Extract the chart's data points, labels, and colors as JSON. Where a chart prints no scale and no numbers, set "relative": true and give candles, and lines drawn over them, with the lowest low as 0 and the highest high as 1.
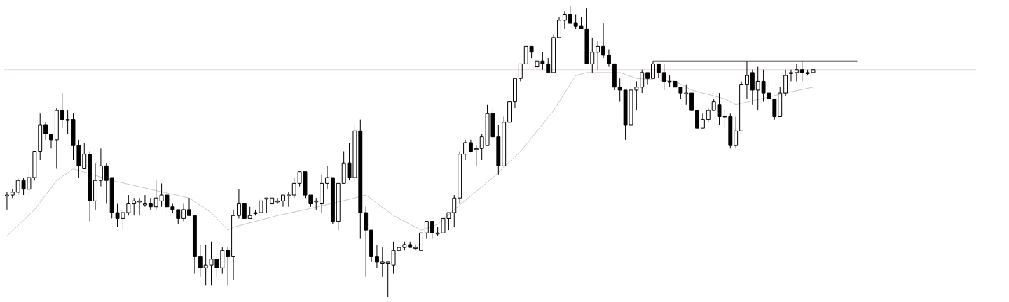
{
  "chart_data": {
    "type": "candlestick",
    "relative": true,
    "marker": "none",
    "categories": [
      null,
      null,
      null,
      null,
      null,
      null,
      null,
      null,
      null,
      null,
      null,
      null,
      null,
      null,
      null,
      null,
      null,
      null,
      null,
      null,
      null,
      null,
      null,
      null,
      null,
      null,
      null,
      null,
      null,
      null,
      null,
      null,
      null,
      null,
      null,
      null,
      null,
      null,
      null,
      null,
      null,
      null,
      null,
      null,
      null,
      null,
      null,
      null,
      null,
      null,
      null,
      null,
      null,
      null,
      null,
      null,
      null,
      null,
      null,
      null,
      null,
      null,
      null,
      null,
      null,
      null,
      null,
      null,
      null,
      null,
      null,
      null,
      null,
      null,
      null,
      null,
      null,
      null,
      null,
      null,
      null,
      null,
      null,
      null,
      null,
      null,
      null,
      null,
      null,
      null,
      null,
      null,
      null,
      null,
      null,
      null,
      null,
      null,
      null,
      null,
      null,
      null,
      null,
      null,
      null,
      null,
      null,
      null,
      null,
      null,
      null,
      null,
      null,
      null,
      null,
      null,
      null,
      null,
      null,
      null,
      null,
      null,
      null,
      null,
      null,
      null,
      null,
      null,
      null,
      null,
      null,
      null,
      null,
      null,
      null,
      null,
      null,
      null,
      null,
      null,
      null,
      null,
      null,
      null,
      null,
      null,
      null,
      null,
      null,
      null,
      null,
      null,
      null,
      null,
      null,
      null,
      null,
      null,
      null,
      null,
      null,
      null,
      null,
      null,
      null,
      null,
      null,
      null,
      null,
      null,
      null,
      null,
      null,
      null,
      null,
      null
    ],
    "series": [
      {
        "color": "#000000",
        "ohlc": [
          [
            0.35,
            0.36,
            0.3,
            0.35
          ],
          [
            0.35,
            0.37,
            0.34,
            0.36
          ],
          [
            0.36,
            0.41,
            0.35,
            0.4
          ],
          [
            0.4,
            0.41,
            0.35,
            0.37
          ],
          [
            0.37,
            0.44,
            0.35,
            0.41
          ],
          [
            0.41,
            0.5,
            0.4,
            0.5
          ],
          [
            0.5,
            0.63,
            0.47,
            0.59
          ],
          [
            0.59,
            0.6,
            0.54,
            0.56
          ],
          [
            0.56,
            0.56,
            0.51,
            0.54
          ],
          [
            0.54,
            0.65,
            0.44,
            0.64
          ],
          [
            0.64,
            0.7,
            0.58,
            0.61
          ],
          [
            0.61,
            0.64,
            0.56,
            0.61
          ],
          [
            0.61,
            0.63,
            0.47,
            0.52
          ],
          [
            0.52,
            0.54,
            0.41,
            0.45
          ],
          [
            0.44,
            0.53,
            0.44,
            0.49
          ],
          [
            0.49,
            0.5,
            0.26,
            0.33
          ],
          [
            0.33,
            0.46,
            0.3,
            0.4
          ],
          [
            0.4,
            0.51,
            0.38,
            0.45
          ],
          [
            0.45,
            0.46,
            0.32,
            0.4
          ],
          [
            0.41,
            0.41,
            0.27,
            0.29
          ],
          [
            0.29,
            0.32,
            0.24,
            0.27
          ],
          [
            0.27,
            0.3,
            0.23,
            0.29
          ],
          [
            0.29,
            0.35,
            0.28,
            0.32
          ],
          [
            0.32,
            0.34,
            0.28,
            0.33
          ],
          [
            0.33,
            0.34,
            0.28,
            0.33
          ],
          [
            0.32,
            0.35,
            0.31,
            0.32
          ],
          [
            0.32,
            0.34,
            0.3,
            0.31
          ],
          [
            0.31,
            0.4,
            0.3,
            0.34
          ],
          [
            0.33,
            0.39,
            0.31,
            0.35
          ],
          [
            0.35,
            0.36,
            0.28,
            0.31
          ],
          [
            0.31,
            0.32,
            0.29,
            0.3
          ],
          [
            0.3,
            0.3,
            0.25,
            0.27
          ],
          [
            0.27,
            0.32,
            0.26,
            0.3
          ],
          [
            0.3,
            0.34,
            0.28,
            0.28
          ],
          [
            0.28,
            0.28,
            0.08,
            0.14
          ],
          [
            0.14,
            0.18,
            0.07,
            0.1
          ],
          [
            0.1,
            0.18,
            0.04,
            0.11
          ],
          [
            0.11,
            0.19,
            0.04,
            0.13
          ],
          [
            0.13,
            0.14,
            0.07,
            0.1
          ],
          [
            0.1,
            0.17,
            0.08,
            0.16
          ],
          [
            0.16,
            0.17,
            0.04,
            0.14
          ],
          [
            0.14,
            0.3,
            0.06,
            0.28
          ],
          [
            0.28,
            0.37,
            0.27,
            0.32
          ],
          [
            0.32,
            0.32,
            0.27,
            0.27
          ],
          [
            0.27,
            0.31,
            0.27,
            0.28
          ],
          [
            0.29,
            0.3,
            0.28,
            0.29
          ],
          [
            0.29,
            0.34,
            0.27,
            0.33
          ],
          [
            0.34,
            0.34,
            0.29,
            0.34
          ],
          [
            0.32,
            0.34,
            0.32,
            0.34
          ],
          [
            0.33,
            0.34,
            0.32,
            0.33
          ],
          [
            0.33,
            0.35,
            0.31,
            0.35
          ],
          [
            0.35,
            0.36,
            0.31,
            0.35
          ],
          [
            0.35,
            0.41,
            0.34,
            0.39
          ],
          [
            0.39,
            0.43,
            0.38,
            0.43
          ],
          [
            0.43,
            0.43,
            0.34,
            0.35
          ],
          [
            0.35,
            0.35,
            0.31,
            0.32
          ],
          [
            0.33,
            0.34,
            0.3,
            0.33
          ],
          [
            0.32,
            0.42,
            0.29,
            0.39
          ],
          [
            0.39,
            0.45,
            0.37,
            0.41
          ],
          [
            0.41,
            0.41,
            0.25,
            0.26
          ],
          [
            0.26,
            0.39,
            0.23,
            0.39
          ],
          [
            0.39,
            0.5,
            0.39,
            0.46
          ],
          [
            0.46,
            0.53,
            0.4,
            0.41
          ],
          [
            0.41,
            0.59,
            0.39,
            0.57
          ],
          [
            0.57,
            0.61,
            0.2,
            0.29
          ],
          [
            0.29,
            0.31,
            0.07,
            0.23
          ],
          [
            0.23,
            0.23,
            0.12,
            0.14
          ],
          [
            0.14,
            0.18,
            0.1,
            0.12
          ],
          [
            0.12,
            0.17,
            0.07,
            0.12
          ],
          [
            0.12,
            0.12,
            0,
            0.12
          ],
          [
            0.11,
            0.19,
            0.08,
            0.16
          ],
          [
            0.16,
            0.18,
            0.15,
            0.17
          ],
          [
            0.17,
            0.19,
            0.16,
            0.18
          ],
          [
            0.18,
            0.19,
            0.17,
            0.17
          ],
          [
            0.17,
            0.18,
            0.16,
            0.17
          ],
          [
            0.16,
            0.22,
            0.16,
            0.22
          ],
          [
            0.22,
            0.26,
            0.2,
            0.26
          ],
          [
            0.26,
            0.26,
            0.2,
            0.22
          ],
          [
            0.22,
            0.24,
            0.21,
            0.22
          ],
          [
            0.22,
            0.27,
            0.22,
            0.27
          ],
          [
            0.27,
            0.29,
            0.23,
            0.29
          ],
          [
            0.29,
            0.35,
            0.24,
            0.34
          ],
          [
            0.34,
            0.5,
            0.32,
            0.49
          ],
          [
            0.49,
            0.54,
            0.47,
            0.53
          ],
          [
            0.53,
            0.54,
            0.5,
            0.5
          ],
          [
            0.51,
            0.52,
            0.45,
            0.51
          ],
          [
            0.51,
            0.56,
            0.47,
            0.55
          ],
          [
            0.52,
            0.66,
            0.52,
            0.63
          ],
          [
            0.63,
            0.65,
            0.54,
            0.55
          ],
          [
            0.55,
            0.59,
            0.42,
            0.45
          ],
          [
            0.45,
            0.62,
            0.45,
            0.6
          ],
          [
            0.6,
            0.67,
            0.6,
            0.67
          ],
          [
            0.67,
            0.75,
            0.65,
            0.75
          ],
          [
            0.75,
            0.8,
            0.74,
            0.8
          ],
          [
            0.8,
            0.86,
            0.8,
            0.86
          ],
          [
            0.86,
            0.86,
            0.82,
            0.84
          ],
          [
            0.79,
            0.84,
            0.79,
            0.81
          ],
          [
            0.81,
            0.84,
            0.78,
            0.8
          ],
          [
            0.8,
            0.82,
            0.77,
            0.77
          ],
          [
            0.77,
            0.9,
            0.77,
            0.89
          ],
          [
            0.89,
            0.96,
            0.89,
            0.95
          ],
          [
            0.95,
            0.98,
            0.92,
            0.97
          ],
          [
            0.97,
            1,
            0.94,
            0.94
          ],
          [
            0.94,
            0.97,
            0.92,
            0.93
          ],
          [
            0.93,
            0.96,
            0.92,
            0.92
          ],
          [
            0.92,
            0.99,
            0.8,
            0.8
          ],
          [
            0.8,
            0.89,
            0.77,
            0.84
          ],
          [
            0.84,
            0.88,
            0.78,
            0.86
          ],
          [
            0.86,
            0.94,
            0.82,
            0.83
          ],
          [
            0.83,
            0.85,
            0.79,
            0.8
          ],
          [
            0.8,
            0.8,
            0.71,
            0.72
          ],
          [
            0.72,
            0.75,
            0.67,
            0.71
          ],
          [
            0.71,
            0.71,
            0.54,
            0.59
          ],
          [
            0.59,
            0.76,
            0.58,
            0.71
          ],
          [
            0.71,
            0.74,
            0.64,
            0.72
          ],
          [
            0.72,
            0.78,
            0.7,
            0.77
          ],
          [
            0.77,
            0.77,
            0.73,
            0.75
          ],
          [
            0.75,
            0.81,
            0.75,
            0.8
          ],
          [
            0.8,
            0.8,
            0.75,
            0.77
          ],
          [
            0.77,
            0.8,
            0.71,
            0.74
          ],
          [
            0.74,
            0.76,
            0.72,
            0.74
          ],
          [
            0.74,
            0.76,
            0.71,
            0.72
          ],
          [
            0.72,
            0.72,
            0.68,
            0.7
          ],
          [
            0.7,
            0.73,
            0.66,
            0.7
          ],
          [
            0.7,
            0.7,
            0.64,
            0.64
          ],
          [
            0.64,
            0.64,
            0.58,
            0.58
          ],
          [
            0.58,
            0.63,
            0.58,
            0.61
          ],
          [
            0.61,
            0.65,
            0.6,
            0.64
          ],
          [
            0.64,
            0.68,
            0.64,
            0.67
          ],
          [
            0.66,
            0.7,
            0.59,
            0.62
          ],
          [
            0.62,
            0.64,
            0.58,
            0.62
          ],
          [
            0.62,
            0.63,
            0.51,
            0.52
          ],
          [
            0.52,
            0.62,
            0.51,
            0.57
          ],
          [
            0.57,
            0.74,
            0.57,
            0.73
          ],
          [
            0.73,
            0.81,
            0.68,
            0.76
          ],
          [
            0.77,
            0.78,
            0.66,
            0.71
          ],
          [
            0.71,
            0.79,
            0.64,
            0.74
          ],
          [
            0.74,
            0.78,
            0.67,
            0.7
          ],
          [
            0.7,
            0.74,
            0.66,
            0.68
          ],
          [
            0.68,
            0.68,
            0.61,
            0.62
          ],
          [
            0.62,
            0.72,
            0.62,
            0.7
          ],
          [
            0.7,
            0.78,
            0.69,
            0.76
          ],
          [
            0.77,
            0.78,
            0.74,
            0.77
          ],
          [
            0.77,
            0.8,
            0.74,
            0.78
          ],
          [
            0.78,
            0.81,
            0.74,
            0.77
          ],
          [
            0.77,
            0.78,
            0.76,
            0.77
          ],
          [
            0.77,
            0.78,
            0.77,
            0.78
          ],
          null,
          null,
          null,
          null,
          null,
          null,
          null,
          null,
          null,
          null,
          null,
          null,
          null,
          null,
          null,
          null,
          null,
          null,
          null,
          null,
          null,
          null,
          null,
          null,
          null,
          null,
          null,
          null,
          null
        ]
      },
      {
        "type": "line",
        "color": "#c8c8c8",
        "values": [
          0.21,
          null,
          null,
          null,
          null,
          0.3,
          null,
          null,
          null,
          0.4,
          null,
          null,
          0.44,
          null,
          null,
          null,
          null,
          null,
          null,
          0.4,
          null,
          null,
          null,
          null,
          null,
          null,
          0.37,
          null,
          null,
          null,
          null,
          null,
          null,
          0.34,
          null,
          null,
          null,
          0.29,
          null,
          null,
          0.23,
          0.24,
          null,
          null,
          null,
          null,
          null,
          null,
          null,
          0.28,
          null,
          null,
          null,
          null,
          0.3,
          null,
          null,
          null,
          null,
          null,
          null,
          null,
          null,
          0.34,
          null,
          0.35,
          null,
          null,
          null,
          null,
          0.28,
          null,
          null,
          null,
          null,
          0.23,
          null,
          null,
          0.25,
          null,
          null,
          0.3,
          null,
          null,
          null,
          null,
          null,
          null,
          0.41,
          null,
          null,
          null,
          null,
          0.5,
          null,
          null,
          null,
          null,
          null,
          0.64,
          null,
          null,
          0.73,
          0.76,
          null,
          0.77,
          null,
          null,
          null,
          null,
          null,
          0.77,
          null,
          null,
          0.75,
          null,
          null,
          null,
          null,
          null,
          null,
          0.74,
          null,
          null,
          0.71,
          null,
          null,
          null,
          null,
          null,
          0.68,
          null,
          0.66,
          null,
          null,
          null,
          null,
          null,
          null,
          null,
          null,
          0.7,
          null,
          null,
          null,
          null,
          0.72,
          null,
          null,
          null,
          null,
          null,
          null,
          null,
          null,
          null,
          null,
          null,
          null,
          null,
          null,
          null,
          null,
          null,
          null,
          null,
          null,
          null,
          null,
          null,
          null,
          null,
          null,
          null,
          null,
          null
        ]
      },
      {
        "type": "line",
        "color": "#555555",
        "values": [
          null,
          null,
          null,
          null,
          null,
          null,
          null,
          null,
          null,
          null,
          null,
          null,
          null,
          null,
          null,
          null,
          null,
          null,
          null,
          null,
          null,
          null,
          null,
          null,
          null,
          null,
          null,
          null,
          null,
          null,
          null,
          null,
          null,
          null,
          null,
          null,
          null,
          null,
          null,
          null,
          null,
          null,
          null,
          null,
          null,
          null,
          null,
          null,
          null,
          null,
          null,
          null,
          null,
          null,
          null,
          null,
          null,
          null,
          null,
          null,
          null,
          null,
          null,
          null,
          null,
          null,
          null,
          null,
          null,
          null,
          null,
          null,
          null,
          null,
          null,
          null,
          null,
          null,
          null,
          null,
          null,
          null,
          null,
          null,
          null,
          null,
          null,
          null,
          null,
          null,
          null,
          null,
          null,
          null,
          null,
          null,
          null,
          null,
          null,
          null,
          null,
          null,
          null,
          null,
          null,
          null,
          null,
          null,
          null,
          null,
          null,
          null,
          null,
          null,
          null,
          null,
          null,
          0.81,
          null,
          null,
          null,
          null,
          null,
          null,
          null,
          null,
          null,
          null,
          null,
          null,
          null,
          null,
          null,
          null,
          null,
          null,
          null,
          null,
          null,
          null,
          null,
          null,
          null,
          null,
          null,
          null,
          null,
          null,
          null,
          null,
          null,
          null,
          null,
          null,
          0.81,
          null,
          null,
          null,
          null,
          null,
          null,
          null,
          null,
          null,
          null,
          null,
          null,
          null,
          null,
          null,
          null,
          null,
          null,
          null,
          null,
          null
        ]
      }
    ],
    "ref_lines": [
      {
        "axis": "y",
        "value": 0.78,
        "color": "#ecd4d4"
      }
    ]
  }
}
